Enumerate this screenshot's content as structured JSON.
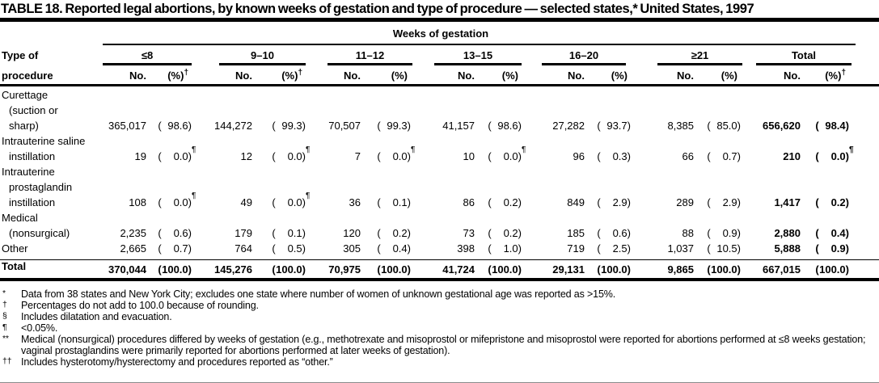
{
  "title": "TABLE 18. Reported legal abortions, by known weeks of gestation and type of procedure — selected states,* United States, 1997",
  "format": {
    "open": "(",
    "close": ")"
  },
  "header": {
    "spanner": "Weeks of gestation",
    "stub_line1": "Type of",
    "stub_line2": "procedure",
    "groups": [
      {
        "label": "≤8",
        "no": "No.",
        "pct": "(%)",
        "pct_sup": "†"
      },
      {
        "label": "9–10",
        "no": "No.",
        "pct": "(%)",
        "pct_sup": "†"
      },
      {
        "label": "11–12",
        "no": "No.",
        "pct": "(%)",
        "pct_sup": ""
      },
      {
        "label": "13–15",
        "no": "No.",
        "pct": "(%)",
        "pct_sup": ""
      },
      {
        "label": "16–20",
        "no": "No.",
        "pct": "(%)",
        "pct_sup": ""
      },
      {
        "label": "≥21",
        "no": "No.",
        "pct": "(%)",
        "pct_sup": ""
      },
      {
        "label": "Total",
        "no": "No.",
        "pct": "(%)",
        "pct_sup": "†"
      }
    ]
  },
  "table": {
    "rows": [
      {
        "label_lines": [
          "Curettage",
          "(suction or",
          "sharp)"
        ],
        "label_sup": "§",
        "cells": [
          {
            "no": "365,017",
            "pct": "98.6",
            "sup": ""
          },
          {
            "no": "144,272",
            "pct": "99.3",
            "sup": ""
          },
          {
            "no": "70,507",
            "pct": "99.3",
            "sup": ""
          },
          {
            "no": "41,157",
            "pct": "98.6",
            "sup": ""
          },
          {
            "no": "27,282",
            "pct": "93.7",
            "sup": ""
          },
          {
            "no": "8,385",
            "pct": "85.0",
            "sup": ""
          },
          {
            "no": "656,620",
            "pct": "98.4",
            "sup": ""
          }
        ]
      },
      {
        "label_lines": [
          "Intrauterine saline",
          "instillation"
        ],
        "label_sup": "",
        "cells": [
          {
            "no": "19",
            "pct": "0.0",
            "sup": "¶"
          },
          {
            "no": "12",
            "pct": "0.0",
            "sup": "¶"
          },
          {
            "no": "7",
            "pct": "0.0",
            "sup": "¶"
          },
          {
            "no": "10",
            "pct": "0.0",
            "sup": "¶"
          },
          {
            "no": "96",
            "pct": "0.3",
            "sup": ""
          },
          {
            "no": "66",
            "pct": "0.7",
            "sup": ""
          },
          {
            "no": "210",
            "pct": "0.0",
            "sup": "¶"
          }
        ]
      },
      {
        "label_lines": [
          "Intrauterine",
          "prostaglandin",
          "instillation"
        ],
        "label_sup": "",
        "cells": [
          {
            "no": "108",
            "pct": "0.0",
            "sup": "¶"
          },
          {
            "no": "49",
            "pct": "0.0",
            "sup": "¶"
          },
          {
            "no": "36",
            "pct": "0.1",
            "sup": ""
          },
          {
            "no": "86",
            "pct": "0.2",
            "sup": ""
          },
          {
            "no": "849",
            "pct": "2.9",
            "sup": ""
          },
          {
            "no": "289",
            "pct": "2.9",
            "sup": ""
          },
          {
            "no": "1,417",
            "pct": "0.2",
            "sup": ""
          }
        ]
      },
      {
        "label_lines": [
          "Medical",
          "(nonsurgical)"
        ],
        "label_sup": "**",
        "cells": [
          {
            "no": "2,235",
            "pct": "0.6",
            "sup": ""
          },
          {
            "no": "179",
            "pct": "0.1",
            "sup": ""
          },
          {
            "no": "120",
            "pct": "0.2",
            "sup": ""
          },
          {
            "no": "73",
            "pct": "0.2",
            "sup": ""
          },
          {
            "no": "185",
            "pct": "0.6",
            "sup": ""
          },
          {
            "no": "88",
            "pct": "0.9",
            "sup": ""
          },
          {
            "no": "2,880",
            "pct": "0.4",
            "sup": ""
          }
        ]
      },
      {
        "label_lines": [
          "Other"
        ],
        "label_sup": "††",
        "cells": [
          {
            "no": "2,665",
            "pct": "0.7",
            "sup": ""
          },
          {
            "no": "764",
            "pct": "0.5",
            "sup": ""
          },
          {
            "no": "305",
            "pct": "0.4",
            "sup": ""
          },
          {
            "no": "398",
            "pct": "1.0",
            "sup": ""
          },
          {
            "no": "719",
            "pct": "2.5",
            "sup": ""
          },
          {
            "no": "1,037",
            "pct": "10.5",
            "sup": ""
          },
          {
            "no": "5,888",
            "pct": "0.9",
            "sup": ""
          }
        ]
      }
    ],
    "total_row": {
      "label": "Total",
      "cells": [
        {
          "no": "370,044",
          "pct": "100.0",
          "sup": ""
        },
        {
          "no": "145,276",
          "pct": "100.0",
          "sup": ""
        },
        {
          "no": "70,975",
          "pct": "100.0",
          "sup": ""
        },
        {
          "no": "41,724",
          "pct": "100.0",
          "sup": ""
        },
        {
          "no": "29,131",
          "pct": "100.0",
          "sup": ""
        },
        {
          "no": "9,865",
          "pct": "100.0",
          "sup": ""
        },
        {
          "no": "667,015",
          "pct": "100.0",
          "sup": ""
        }
      ]
    }
  },
  "footnotes": [
    {
      "marker": "*",
      "text": "Data from 38 states and New York City; excludes one state where number of women of unknown gestational age was reported as >15%."
    },
    {
      "marker": "†",
      "text": "Percentages do not add to 100.0 because of rounding."
    },
    {
      "marker": "§",
      "text": "Includes dilatation and evacuation."
    },
    {
      "marker": "¶",
      "text": "<0.05%."
    },
    {
      "marker": "**",
      "text": "Medical (nonsurgical) procedures differed by weeks of gestation (e.g., methotrexate and misoprostol or mifepristone and misoprostol were reported for abortions performed at ≤8 weeks gestation; vaginal prostaglandins were primarily reported for abortions performed at later weeks of gestation)."
    },
    {
      "marker": "††",
      "text": "Includes hysterotomy/hysterectomy and procedures reported as “other.”"
    }
  ]
}
